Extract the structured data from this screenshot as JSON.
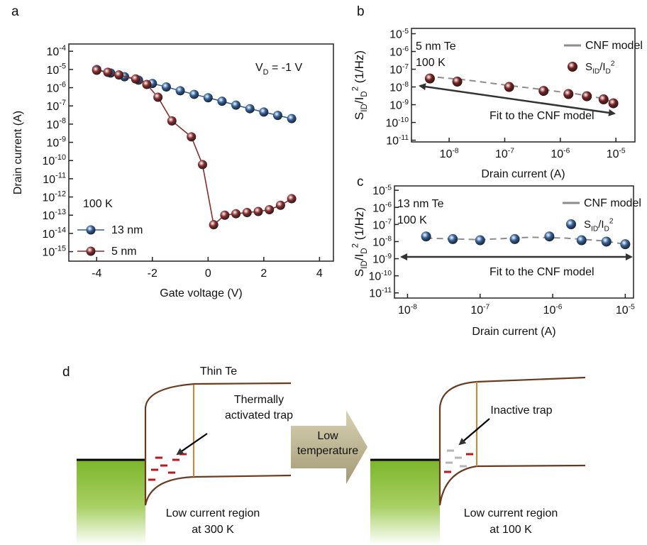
{
  "chart_data": [
    {
      "type": "line",
      "panel_label": "a",
      "xlabel": "Gate voltage (V)",
      "ylabel": "Drain current (A)",
      "xlim": [
        -5,
        4.5
      ],
      "ylim": [
        3e-16,
        0.00025
      ],
      "yscale": "log",
      "xticks": [
        -4,
        -2,
        0,
        2,
        4
      ],
      "yticks": [
        {
          "value": 0.0001,
          "label": {
            "base": "10",
            "exp": "-4"
          }
        },
        {
          "value": 1e-05,
          "label": {
            "base": "10",
            "exp": "-5"
          }
        },
        {
          "value": 1e-06,
          "label": {
            "base": "10",
            "exp": "-6"
          }
        },
        {
          "value": 1e-07,
          "label": {
            "base": "10",
            "exp": "-7"
          }
        },
        {
          "value": 1e-08,
          "label": {
            "base": "10",
            "exp": "-8"
          }
        },
        {
          "value": 1e-09,
          "label": {
            "base": "10",
            "exp": "-9"
          }
        },
        {
          "value": 1e-10,
          "label": {
            "base": "10",
            "exp": "-10"
          }
        },
        {
          "value": 1e-11,
          "label": {
            "base": "10",
            "exp": "-11"
          }
        },
        {
          "value": 1e-12,
          "label": {
            "base": "10",
            "exp": "-12"
          }
        },
        {
          "value": 1e-13,
          "label": {
            "base": "10",
            "exp": "-13"
          }
        },
        {
          "value": 1e-14,
          "label": {
            "base": "10",
            "exp": "-14"
          }
        },
        {
          "value": 1e-15,
          "label": {
            "base": "10",
            "exp": "-15"
          }
        }
      ],
      "annotation": [
        "V",
        "D",
        " = -1 V"
      ],
      "legend_title": "100 K",
      "legend": "lower left",
      "series": [
        {
          "name": "13 nm",
          "color": "#2f5f9a",
          "style": "line",
          "x": [
            -4,
            -3.5,
            -3,
            -2.5,
            -2,
            -1.5,
            -1,
            -0.5,
            0,
            0.5,
            1,
            1.5,
            2,
            2.5,
            3
          ],
          "values": [
            1e-05,
            6.4e-06,
            4e-06,
            2.6e-06,
            1.7e-06,
            1.1e-06,
            6.8e-07,
            4.3e-07,
            2.8e-07,
            1.8e-07,
            1.1e-07,
            7e-08,
            4.6e-08,
            3e-08,
            2e-08
          ]
        },
        {
          "name": "5 nm",
          "color": "#8a2b2b",
          "style": "line",
          "x": [
            -4,
            -3.6,
            -3.2,
            -2.6,
            -2.2,
            -1.8,
            -1.3,
            -0.6,
            -0.2,
            0.2,
            0.6,
            1,
            1.4,
            1.8,
            2.2,
            2.6,
            3
          ],
          "values": [
            9e-06,
            7e-06,
            5e-06,
            3e-06,
            1.5e-06,
            3e-07,
            1.5e-08,
            2e-09,
            6e-11,
            3e-14,
            1e-13,
            1.2e-13,
            1.4e-13,
            1.6e-13,
            2e-13,
            3.5e-13,
            8e-13
          ]
        }
      ]
    },
    {
      "type": "scatter",
      "panel_label": "b",
      "xlabel": "Drain current (A)",
      "ylabel": [
        "S",
        "ID",
        "/I",
        "D",
        "2",
        " (1/Hz)"
      ],
      "xscale": "log",
      "yscale": "log",
      "xlim": [
        2.1e-09,
        2.2e-05
      ],
      "ylim": [
        8e-12,
        2e-05
      ],
      "xticks": [
        {
          "value": 1e-08,
          "label": {
            "base": "10",
            "exp": "-8"
          }
        },
        {
          "value": 1e-07,
          "label": {
            "base": "10",
            "exp": "-7"
          }
        },
        {
          "value": 1e-06,
          "label": {
            "base": "10",
            "exp": "-6"
          }
        },
        {
          "value": 1e-05,
          "label": {
            "base": "10",
            "exp": "-5"
          }
        }
      ],
      "yticks": [
        {
          "value": 1e-05,
          "label": {
            "base": "10",
            "exp": "-5"
          }
        },
        {
          "value": 1e-06,
          "label": {
            "base": "10",
            "exp": "-6"
          }
        },
        {
          "value": 1e-07,
          "label": {
            "base": "10",
            "exp": "-7"
          }
        },
        {
          "value": 1e-08,
          "label": {
            "base": "10",
            "exp": "-8"
          }
        },
        {
          "value": 1e-09,
          "label": {
            "base": "10",
            "exp": "-9"
          }
        },
        {
          "value": 1e-10,
          "label": {
            "base": "10",
            "exp": "-10"
          }
        },
        {
          "value": 1e-11,
          "label": {
            "base": "10",
            "exp": "-11"
          }
        }
      ],
      "sample_labels": [
        "5 nm Te",
        "100 K"
      ],
      "annotation": "Fit to the CNF model",
      "legend": "upper right",
      "series": [
        {
          "name": "CNF model",
          "color": "#8c8c8c",
          "style": "dashed",
          "x": [
            4e-09,
            2e-08,
            1e-07,
            5e-07,
            2e-06,
            6e-06,
            1e-05
          ],
          "values": [
            4e-08,
            2.5e-08,
            1.3e-08,
            7e-09,
            4e-09,
            2.2e-09,
            1.2e-09
          ]
        },
        {
          "name": [
            "S",
            "ID",
            "/I",
            "D",
            "2"
          ],
          "color": "#7a1f1f",
          "style": "markers",
          "x": [
            4.5e-09,
            1.4e-08,
            1.2e-07,
            5e-07,
            1.4e-06,
            3e-06,
            6e-06,
            9e-06
          ],
          "values": [
            3e-08,
            2e-08,
            1e-08,
            6e-09,
            4e-09,
            3e-09,
            2e-09,
            1.2e-09
          ]
        }
      ]
    },
    {
      "type": "scatter",
      "panel_label": "c",
      "xlabel": "Drain current (A)",
      "ylabel": [
        "S",
        "ID",
        "/I",
        "D",
        "2",
        " (1/Hz)"
      ],
      "xscale": "log",
      "yscale": "log",
      "xlim": [
        6.6e-09,
        1.3e-05
      ],
      "ylim": [
        5e-12,
        1.8e-05
      ],
      "xticks": [
        {
          "value": 1e-08,
          "label": {
            "base": "10",
            "exp": "-8"
          }
        },
        {
          "value": 1e-07,
          "label": {
            "base": "10",
            "exp": "-7"
          }
        },
        {
          "value": 1e-06,
          "label": {
            "base": "10",
            "exp": "-6"
          }
        },
        {
          "value": 1e-05,
          "label": {
            "base": "10",
            "exp": "-5"
          }
        }
      ],
      "yticks": [
        {
          "value": 1e-05,
          "label": {
            "base": "10",
            "exp": "-5"
          }
        },
        {
          "value": 1e-06,
          "label": {
            "base": "10",
            "exp": "-6"
          }
        },
        {
          "value": 1e-07,
          "label": {
            "base": "10",
            "exp": "-7"
          }
        },
        {
          "value": 1e-08,
          "label": {
            "base": "10",
            "exp": "-8"
          }
        },
        {
          "value": 1e-09,
          "label": {
            "base": "10",
            "exp": "-9"
          }
        },
        {
          "value": 1e-10,
          "label": {
            "base": "10",
            "exp": "-10"
          }
        },
        {
          "value": 1e-11,
          "label": {
            "base": "10",
            "exp": "-11"
          }
        }
      ],
      "sample_labels": [
        "13 nm Te",
        "100 K"
      ],
      "annotation": "Fit to the CNF model",
      "legend": "upper right",
      "series": [
        {
          "name": "CNF model",
          "color": "#8c8c8c",
          "style": "dashed",
          "x": [
            1.8e-08,
            1e-07,
            5e-07,
            1.5e-06,
            5e-06,
            1e-05
          ],
          "values": [
            1.6e-08,
            1.3e-08,
            1.8e-08,
            1.6e-08,
            1.1e-08,
            7e-09
          ]
        },
        {
          "name": [
            "S",
            "ID",
            "/I",
            "D",
            "2"
          ],
          "color": "#2f5f9a",
          "style": "markers",
          "x": [
            1.8e-08,
            4.2e-08,
            1e-07,
            3e-07,
            9e-07,
            2.5e-06,
            5.5e-06,
            1e-05
          ],
          "values": [
            2e-08,
            1.4e-08,
            1.2e-08,
            1.4e-08,
            2e-08,
            1.2e-08,
            1e-08,
            7e-09
          ]
        }
      ]
    }
  ],
  "diagram": {
    "panel_label": "d",
    "title": "Thin Te",
    "left": {
      "trap_label": [
        "Thermally",
        "activated trap"
      ],
      "region_label": [
        "Low current region",
        "at 300 K"
      ]
    },
    "arrow_label": [
      "Low",
      "temperature"
    ],
    "right": {
      "trap_label": [
        "Inactive trap"
      ],
      "region_label": [
        "Low current region",
        "at 100 K"
      ]
    }
  }
}
